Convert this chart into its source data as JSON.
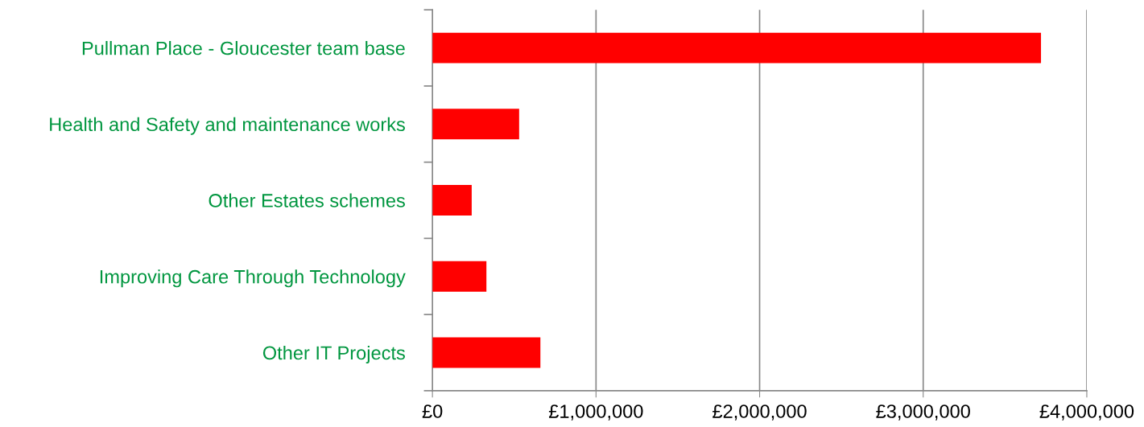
{
  "chart_data": {
    "type": "bar",
    "orientation": "horizontal",
    "categories": [
      "Pullman Place - Gloucester team base",
      "Health and Safety and maintenance works",
      "Other Estates schemes",
      "Improving Care Through Technology",
      "Other IT Projects"
    ],
    "values": [
      3720000,
      530000,
      240000,
      330000,
      660000
    ],
    "color": "#ff0000",
    "xlim": [
      0,
      4000000
    ],
    "xticks": [
      {
        "value": 0,
        "label": "£0"
      },
      {
        "value": 1000000,
        "label": "£1,000,000"
      },
      {
        "value": 2000000,
        "label": "£2,000,000"
      },
      {
        "value": 3000000,
        "label": "£3,000,000"
      },
      {
        "value": 4000000,
        "label": "£4,000,000"
      }
    ],
    "grid": "x",
    "legend": false
  }
}
